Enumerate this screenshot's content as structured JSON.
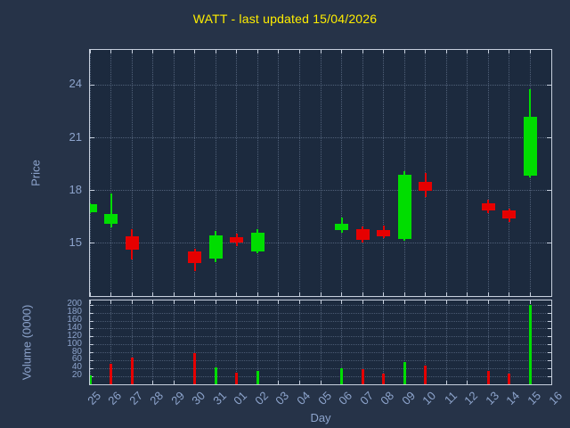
{
  "chart_data": {
    "type": "candlestick",
    "title": "WATT - last updated 15/04/2026",
    "xlabel": "Day",
    "ylabel": "Price",
    "y2label": "Volume (0000)",
    "legend": "none",
    "grid": "dotted",
    "x_categories": [
      "25",
      "26",
      "27",
      "28",
      "29",
      "30",
      "31",
      "01",
      "02",
      "03",
      "04",
      "05",
      "06",
      "07",
      "08",
      "09",
      "10",
      "11",
      "12",
      "13",
      "14",
      "15",
      "16"
    ],
    "price_axis": {
      "range": [
        12,
        26
      ],
      "ticks": [
        15,
        18,
        21,
        24
      ]
    },
    "volume_axis": {
      "range": [
        0,
        212
      ],
      "ticks": [
        20,
        40,
        60,
        80,
        100,
        120,
        140,
        160,
        180,
        200
      ]
    },
    "candles": [
      {
        "x": "25",
        "open": 16.75,
        "close": 17.25,
        "high": 17.3,
        "low": 16.7
      },
      {
        "x": "26",
        "open": 16.1,
        "close": 16.65,
        "high": 17.85,
        "low": 15.9
      },
      {
        "x": "27",
        "open": 15.4,
        "close": 14.65,
        "high": 15.8,
        "low": 14.1
      },
      {
        "x": "30",
        "open": 14.55,
        "close": 13.9,
        "high": 14.7,
        "low": 13.4
      },
      {
        "x": "31",
        "open": 14.15,
        "close": 15.45,
        "high": 15.7,
        "low": 13.95
      },
      {
        "x": "01",
        "open": 15.35,
        "close": 15.05,
        "high": 15.55,
        "low": 14.85
      },
      {
        "x": "02",
        "open": 14.55,
        "close": 15.6,
        "high": 15.8,
        "low": 14.45
      },
      {
        "x": "06",
        "open": 15.75,
        "close": 16.1,
        "high": 16.45,
        "low": 15.6
      },
      {
        "x": "07",
        "open": 15.8,
        "close": 15.2,
        "high": 15.95,
        "low": 15.05
      },
      {
        "x": "08",
        "open": 15.75,
        "close": 15.4,
        "high": 16.0,
        "low": 15.3
      },
      {
        "x": "09",
        "open": 15.25,
        "close": 18.9,
        "high": 19.1,
        "low": 15.15
      },
      {
        "x": "10",
        "open": 18.5,
        "close": 18.0,
        "high": 19.0,
        "low": 17.65
      },
      {
        "x": "13",
        "open": 17.3,
        "close": 16.85,
        "high": 17.5,
        "low": 16.7
      },
      {
        "x": "14",
        "open": 16.85,
        "close": 16.4,
        "high": 16.95,
        "low": 16.2
      },
      {
        "x": "15",
        "open": 18.85,
        "close": 22.2,
        "high": 23.75,
        "low": 18.75
      }
    ],
    "volumes": [
      {
        "x": "25",
        "value": 22,
        "color": "up"
      },
      {
        "x": "26",
        "value": 52,
        "color": "down"
      },
      {
        "x": "27",
        "value": 68,
        "color": "down"
      },
      {
        "x": "30",
        "value": 78,
        "color": "down"
      },
      {
        "x": "31",
        "value": 42,
        "color": "up"
      },
      {
        "x": "01",
        "value": 30,
        "color": "down"
      },
      {
        "x": "02",
        "value": 33,
        "color": "up"
      },
      {
        "x": "06",
        "value": 40,
        "color": "up"
      },
      {
        "x": "07",
        "value": 38,
        "color": "down"
      },
      {
        "x": "08",
        "value": 28,
        "color": "down"
      },
      {
        "x": "09",
        "value": 56,
        "color": "up"
      },
      {
        "x": "10",
        "value": 48,
        "color": "down"
      },
      {
        "x": "13",
        "value": 33,
        "color": "down"
      },
      {
        "x": "14",
        "value": 27,
        "color": "down"
      },
      {
        "x": "15",
        "value": 200,
        "color": "up"
      }
    ],
    "colors": {
      "background": "#263348",
      "plot_background": "#1c2a3e",
      "grid": "#8fa3c0",
      "frame": "#c6cfdd",
      "text": "#8da4cc",
      "title": "#ffee00",
      "up": "#00dd00",
      "down": "#e60000"
    }
  }
}
